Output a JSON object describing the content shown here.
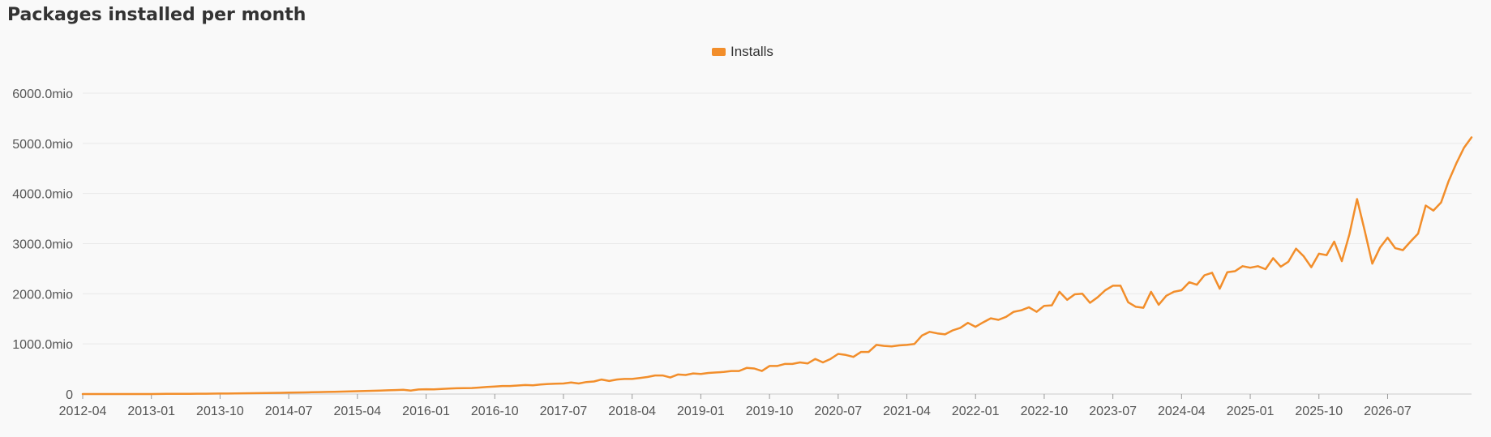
{
  "title": "Packages installed per month",
  "legend": {
    "label": "Installs",
    "color": "#f28e2b"
  },
  "chart_data": {
    "type": "line",
    "title": "Packages installed per month",
    "xlabel": "",
    "ylabel": "",
    "grid": true,
    "legend_position": "top-center",
    "ylim": [
      0,
      6000
    ],
    "y_ticks": [
      0,
      1000,
      2000,
      3000,
      4000,
      5000,
      6000
    ],
    "y_tick_labels": [
      "0",
      "1000.0mio",
      "2000.0mio",
      "3000.0mio",
      "4000.0mio",
      "5000.0mio",
      "6000.0mio"
    ],
    "x_tick_labels": [
      "2012-04",
      "2013-01",
      "2013-10",
      "2014-07",
      "2015-04",
      "2016-01",
      "2016-10",
      "2017-07",
      "2018-04",
      "2019-01",
      "2019-10",
      "2020-07",
      "2021-04",
      "2022-01",
      "2022-10",
      "2023-07",
      "2024-04",
      "2025-01",
      "2025-10",
      "2026-07"
    ],
    "x_start": "2012-04",
    "series": [
      {
        "name": "Installs",
        "color": "#f28e2b",
        "values": [
          0,
          0,
          0,
          0,
          0,
          0,
          0,
          0,
          0,
          0,
          2,
          3,
          4,
          5,
          5,
          6,
          7,
          8,
          9,
          10,
          12,
          14,
          16,
          18,
          20,
          22,
          25,
          28,
          30,
          33,
          36,
          39,
          42,
          45,
          48,
          52,
          56,
          60,
          65,
          70,
          75,
          80,
          85,
          70,
          90,
          95,
          92,
          100,
          110,
          115,
          118,
          120,
          130,
          140,
          150,
          160,
          160,
          170,
          180,
          175,
          190,
          200,
          205,
          210,
          230,
          210,
          240,
          250,
          290,
          260,
          290,
          300,
          300,
          320,
          340,
          370,
          370,
          330,
          390,
          380,
          410,
          400,
          420,
          430,
          440,
          460,
          460,
          520,
          510,
          460,
          560,
          560,
          600,
          600,
          630,
          610,
          700,
          630,
          700,
          800,
          780,
          740,
          840,
          840,
          980,
          960,
          950,
          970,
          980,
          1000,
          1170,
          1240,
          1210,
          1190,
          1270,
          1320,
          1420,
          1340,
          1430,
          1510,
          1480,
          1540,
          1640,
          1670,
          1730,
          1640,
          1760,
          1770,
          2040,
          1880,
          1990,
          2000,
          1820,
          1930,
          2070,
          2160,
          2160,
          1830,
          1740,
          1720,
          2040,
          1780,
          1960,
          2040,
          2070,
          2230,
          2180,
          2370,
          2420,
          2100,
          2430,
          2450,
          2550,
          2520,
          2550,
          2490,
          2710,
          2540,
          2640,
          2900,
          2750,
          2530,
          2800,
          2770,
          3040,
          2650,
          3190,
          3890,
          3260,
          2600,
          2920,
          3120,
          2910,
          2870,
          3040,
          3200,
          3760,
          3660,
          3820,
          4250,
          4600,
          4910,
          5120
        ]
      }
    ]
  }
}
